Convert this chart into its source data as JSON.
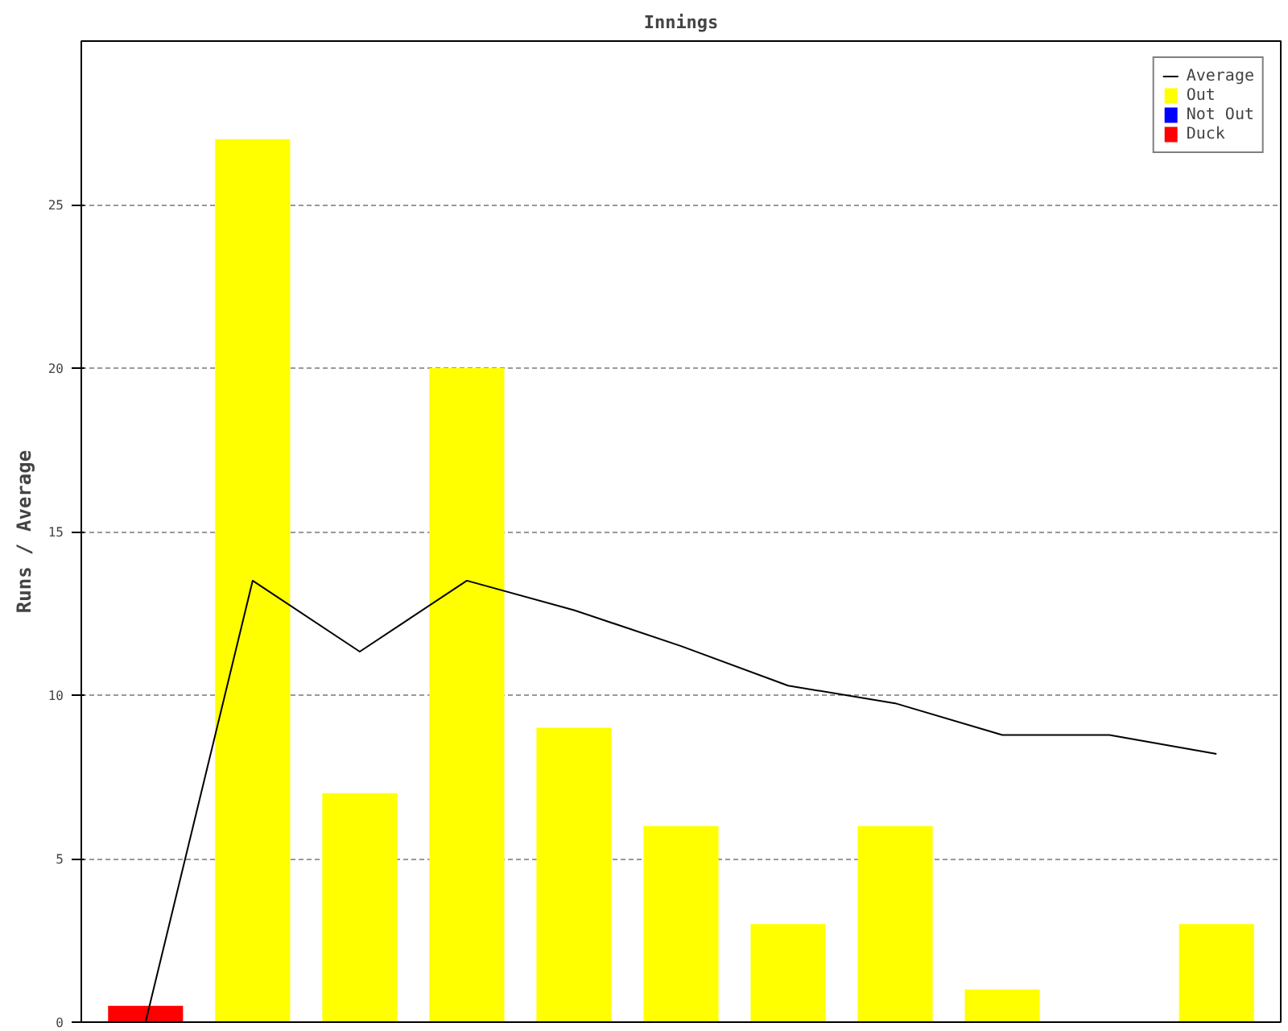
{
  "chart_data": {
    "type": "bar",
    "title": "Innings",
    "ylabel": "Runs / Average",
    "categories": [
      null,
      null,
      null,
      null,
      null,
      null,
      null,
      null,
      null,
      null,
      null
    ],
    "series": [
      {
        "name": "Average",
        "type": "line",
        "color": "#000000",
        "values": [
          0,
          13.5,
          11.33,
          13.5,
          12.6,
          11.5,
          10.29,
          9.75,
          8.78,
          8.78,
          8.2
        ]
      },
      {
        "name": "Out",
        "color": "#ffff00",
        "values": [
          null,
          27,
          7,
          20,
          9,
          6,
          3,
          6,
          1,
          null,
          3
        ]
      },
      {
        "name": "Not Out",
        "color": "#0000ff",
        "values": [
          null,
          null,
          null,
          null,
          null,
          null,
          null,
          null,
          null,
          0,
          null
        ]
      },
      {
        "name": "Duck",
        "color": "#ff0000",
        "values": [
          0.5,
          null,
          null,
          null,
          null,
          null,
          null,
          null,
          null,
          null,
          null
        ]
      }
    ],
    "ylim": [
      0,
      30
    ],
    "yticks": [
      0,
      5,
      10,
      15,
      20,
      25
    ],
    "grid": "y",
    "legend": "top right",
    "marker": "none",
    "line_style": "solid"
  }
}
